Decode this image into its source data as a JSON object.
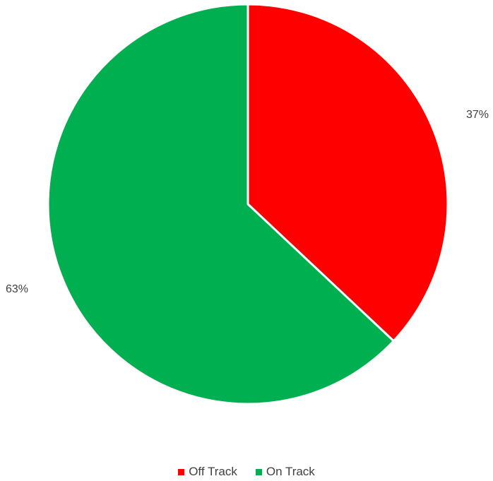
{
  "chart_data": {
    "type": "pie",
    "title": "",
    "slices": [
      {
        "label": "Off Track",
        "value": 37,
        "display": "37%",
        "color": "#FF0000"
      },
      {
        "label": "On Track",
        "value": 63,
        "display": "63%",
        "color": "#00B050"
      }
    ],
    "start_angle": "12 o'clock",
    "direction": "clockwise",
    "legend": {
      "position": "bottom",
      "items": [
        "Off Track",
        "On Track"
      ]
    }
  }
}
